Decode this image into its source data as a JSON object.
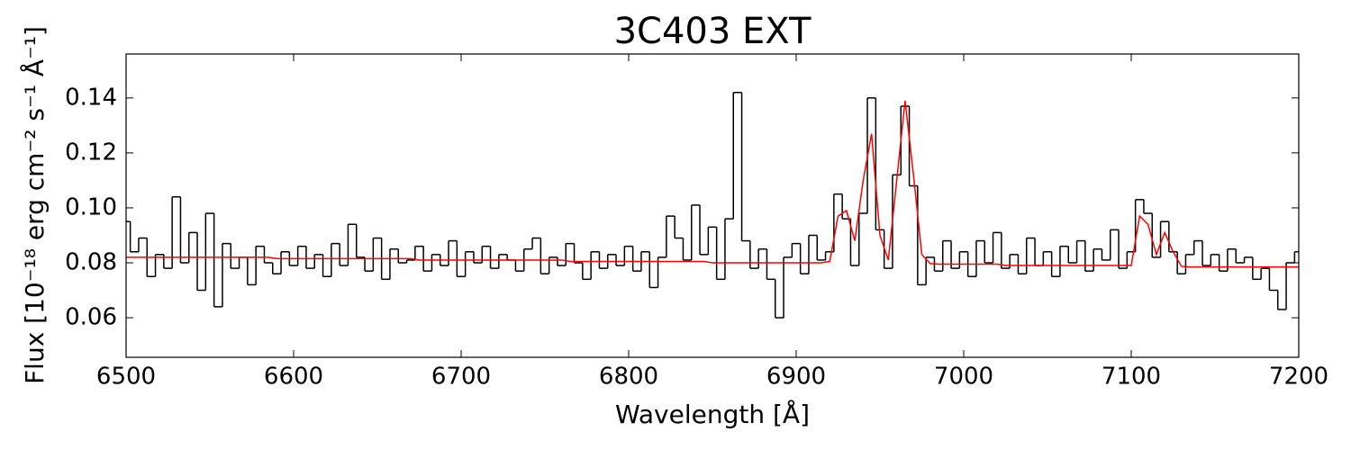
{
  "chart_data": {
    "type": "line",
    "title": "3C403 EXT",
    "x_label": "Wavelength [Å]",
    "y_label": "Flux [10⁻¹⁸ erg cm⁻² s⁻¹ Å⁻¹]",
    "x": [
      6500,
      6505,
      6510,
      6515,
      6520,
      6525,
      6530,
      6535,
      6540,
      6545,
      6550,
      6555,
      6560,
      6565,
      6570,
      6575,
      6580,
      6585,
      6590,
      6595,
      6600,
      6605,
      6610,
      6615,
      6620,
      6625,
      6630,
      6635,
      6640,
      6645,
      6650,
      6655,
      6660,
      6665,
      6670,
      6675,
      6680,
      6685,
      6690,
      6695,
      6700,
      6705,
      6710,
      6715,
      6720,
      6725,
      6730,
      6735,
      6740,
      6745,
      6750,
      6755,
      6760,
      6765,
      6770,
      6775,
      6780,
      6785,
      6790,
      6795,
      6800,
      6805,
      6810,
      6815,
      6820,
      6825,
      6830,
      6835,
      6840,
      6845,
      6850,
      6855,
      6860,
      6865,
      6870,
      6875,
      6880,
      6885,
      6890,
      6895,
      6900,
      6905,
      6910,
      6915,
      6920,
      6925,
      6930,
      6935,
      6940,
      6945,
      6950,
      6955,
      6960,
      6965,
      6970,
      6975,
      6980,
      6985,
      6990,
      6995,
      7000,
      7005,
      7010,
      7015,
      7020,
      7025,
      7030,
      7035,
      7040,
      7045,
      7050,
      7055,
      7060,
      7065,
      7070,
      7075,
      7080,
      7085,
      7090,
      7095,
      7100,
      7105,
      7110,
      7115,
      7120,
      7125,
      7130,
      7135,
      7140,
      7145,
      7150,
      7155,
      7160,
      7165,
      7170,
      7175,
      7180,
      7185,
      7190,
      7195,
      7200
    ],
    "series": [
      {
        "color": "#000000",
        "drawstyle": "steps-mid",
        "values": [
          0.095,
          0.084,
          0.089,
          0.075,
          0.083,
          0.078,
          0.104,
          0.08,
          0.091,
          0.07,
          0.098,
          0.064,
          0.087,
          0.078,
          0.082,
          0.072,
          0.086,
          0.08,
          0.076,
          0.084,
          0.079,
          0.086,
          0.078,
          0.083,
          0.075,
          0.087,
          0.079,
          0.094,
          0.082,
          0.077,
          0.089,
          0.074,
          0.085,
          0.08,
          0.081,
          0.086,
          0.077,
          0.083,
          0.079,
          0.088,
          0.075,
          0.084,
          0.08,
          0.086,
          0.078,
          0.083,
          0.081,
          0.077,
          0.085,
          0.089,
          0.076,
          0.082,
          0.079,
          0.087,
          0.08,
          0.074,
          0.084,
          0.078,
          0.083,
          0.079,
          0.086,
          0.077,
          0.084,
          0.071,
          0.082,
          0.097,
          0.089,
          0.081,
          0.101,
          0.083,
          0.093,
          0.074,
          0.096,
          0.142,
          0.088,
          0.078,
          0.085,
          0.074,
          0.06,
          0.082,
          0.087,
          0.076,
          0.09,
          0.081,
          0.084,
          0.105,
          0.096,
          0.079,
          0.098,
          0.14,
          0.092,
          0.078,
          0.112,
          0.137,
          0.108,
          0.072,
          0.082,
          0.077,
          0.088,
          0.078,
          0.084,
          0.075,
          0.088,
          0.08,
          0.091,
          0.078,
          0.083,
          0.076,
          0.089,
          0.079,
          0.084,
          0.075,
          0.086,
          0.08,
          0.088,
          0.077,
          0.085,
          0.081,
          0.092,
          0.078,
          0.084,
          0.103,
          0.098,
          0.082,
          0.095,
          0.084,
          0.076,
          0.083,
          0.088,
          0.079,
          0.083,
          0.077,
          0.085,
          0.08,
          0.082,
          0.074,
          0.078,
          0.07,
          0.063,
          0.08,
          0.084
        ]
      },
      {
        "color": "#ff0000",
        "drawstyle": "default",
        "values": [
          0.082,
          0.082,
          0.082,
          0.082,
          0.082,
          0.082,
          0.082,
          0.082,
          0.082,
          0.082,
          0.082,
          0.082,
          0.082,
          0.082,
          0.082,
          0.082,
          0.082,
          0.082,
          0.0815,
          0.0815,
          0.0815,
          0.0815,
          0.0815,
          0.0815,
          0.0815,
          0.0815,
          0.0815,
          0.0815,
          0.0815,
          0.0815,
          0.0815,
          0.0815,
          0.0815,
          0.0815,
          0.0815,
          0.081,
          0.081,
          0.081,
          0.081,
          0.081,
          0.081,
          0.081,
          0.081,
          0.081,
          0.081,
          0.081,
          0.081,
          0.081,
          0.081,
          0.081,
          0.081,
          0.081,
          0.081,
          0.0805,
          0.0805,
          0.0805,
          0.0805,
          0.0805,
          0.0805,
          0.0805,
          0.0805,
          0.0805,
          0.0805,
          0.0805,
          0.0805,
          0.0805,
          0.0805,
          0.0805,
          0.0805,
          0.0805,
          0.08,
          0.08,
          0.08,
          0.08,
          0.08,
          0.08,
          0.08,
          0.08,
          0.08,
          0.08,
          0.08,
          0.08,
          0.08,
          0.08,
          0.0805,
          0.097,
          0.099,
          0.088,
          0.11,
          0.127,
          0.09,
          0.081,
          0.11,
          0.139,
          0.112,
          0.083,
          0.0797,
          0.0795,
          0.0795,
          0.0795,
          0.0795,
          0.0795,
          0.0795,
          0.0795,
          0.0795,
          0.079,
          0.079,
          0.079,
          0.079,
          0.079,
          0.079,
          0.079,
          0.079,
          0.079,
          0.079,
          0.079,
          0.079,
          0.079,
          0.079,
          0.079,
          0.079,
          0.097,
          0.094,
          0.083,
          0.091,
          0.084,
          0.0787,
          0.0785,
          0.0785,
          0.0785,
          0.0785,
          0.0785,
          0.0785,
          0.0785,
          0.0785,
          0.0785,
          0.0785,
          0.0785,
          0.0785,
          0.0785,
          0.0785
        ]
      }
    ],
    "xlim": [
      6500,
      7200
    ],
    "xticks": [
      6500,
      6600,
      6700,
      6800,
      6900,
      7000,
      7100,
      7200
    ],
    "ylim": [
      0.0456,
      0.156
    ],
    "yticks": [
      0.06,
      0.08,
      {
        "value": 0.1,
        "label": "0.10"
      },
      0.12,
      0.14
    ],
    "grid": false
  }
}
